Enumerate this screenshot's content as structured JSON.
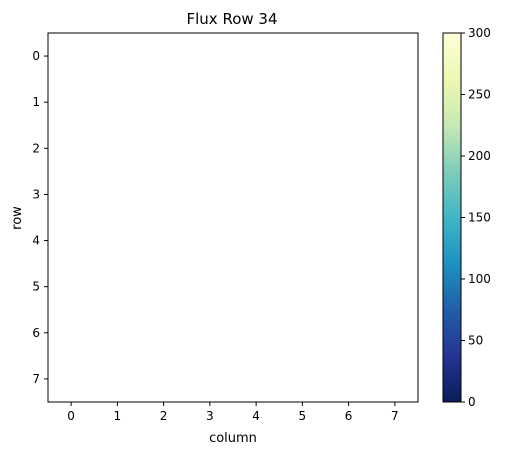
{
  "chart_data": {
    "type": "heatmap",
    "title": "Flux Row 34",
    "xlabel": "column",
    "ylabel": "row",
    "x_ticks": [
      "0",
      "1",
      "2",
      "3",
      "4",
      "5",
      "6",
      "7"
    ],
    "y_ticks": [
      "0",
      "1",
      "2",
      "3",
      "4",
      "5",
      "6",
      "7"
    ],
    "xlim": [
      -0.5,
      7.5
    ],
    "ylim": [
      7.5,
      -0.5
    ],
    "values": [],
    "grid": false,
    "colorbar": {
      "min": 0,
      "max": 300,
      "ticks": [
        0,
        50,
        100,
        150,
        200,
        250,
        300
      ],
      "tick_labels": [
        "0",
        "50",
        "100",
        "150",
        "200",
        "250",
        "300"
      ],
      "colormap": "YlGnBu_r",
      "colors": [
        "#081d58",
        "#253494",
        "#225ea8",
        "#1d91c0",
        "#41b6c4",
        "#7fcdbb",
        "#c7e9b4",
        "#edf8b1",
        "#ffffd9"
      ]
    }
  }
}
